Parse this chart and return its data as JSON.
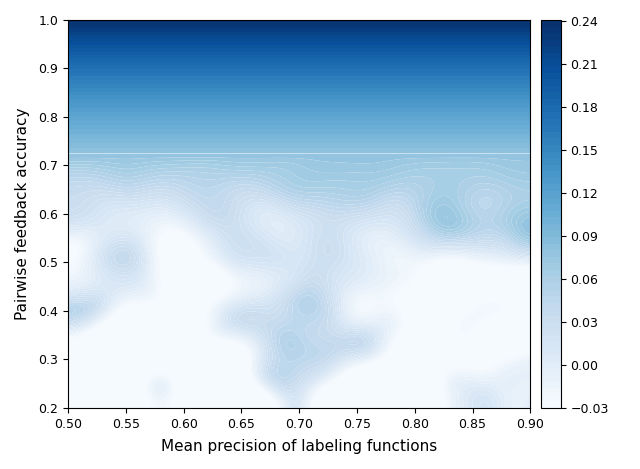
{
  "xlabel": "Mean precision of labeling functions",
  "ylabel": "Pairwise feedback accuracy",
  "x_min": 0.5,
  "x_max": 0.9,
  "y_min": 0.2,
  "y_max": 1.0,
  "x_ticks": [
    0.5,
    0.55,
    0.6,
    0.65,
    0.7,
    0.75,
    0.8,
    0.85,
    0.9
  ],
  "y_ticks": [
    0.2,
    0.3,
    0.4,
    0.5,
    0.6,
    0.7,
    0.8,
    0.9,
    1.0
  ],
  "cbar_ticks": [
    -0.03,
    0.0,
    0.03,
    0.06,
    0.09,
    0.12,
    0.15,
    0.18,
    0.21,
    0.24
  ],
  "vmin": -0.03,
  "vmax": 0.24,
  "colormap": "Blues",
  "figsize": [
    6.4,
    4.69
  ],
  "dpi": 100,
  "nx": 200,
  "ny": 200,
  "contour_levels": 10
}
